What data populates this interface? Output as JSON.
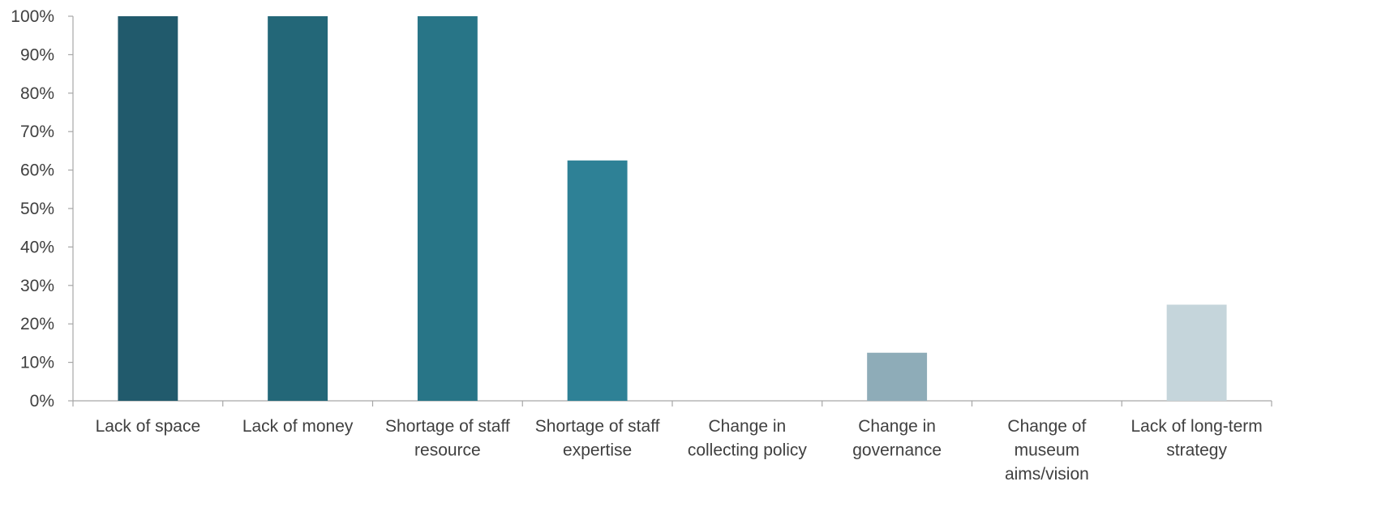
{
  "chart_data": {
    "type": "bar",
    "categories": [
      [
        "Lack of space"
      ],
      [
        "Lack of money"
      ],
      [
        "Shortage of staff",
        "resource"
      ],
      [
        "Shortage of staff",
        "expertise"
      ],
      [
        "Change in",
        "collecting policy"
      ],
      [
        "Change in",
        "governance"
      ],
      [
        "Change of",
        "museum",
        "aims/vision"
      ],
      [
        "Lack of long-term",
        "strategy"
      ]
    ],
    "values": [
      100,
      100,
      100,
      62.5,
      0,
      12.5,
      0,
      25
    ],
    "colors": [
      "#215a6c",
      "#236778",
      "#287587",
      "#2e8196",
      "#3f8fa3",
      "#8eacb8",
      "#a8c0c8",
      "#c5d5db"
    ],
    "ylim": [
      0,
      100
    ],
    "yticks": [
      "0%",
      "10%",
      "20%",
      "30%",
      "40%",
      "50%",
      "60%",
      "70%",
      "80%",
      "90%",
      "100%"
    ],
    "title": "",
    "xlabel": "",
    "ylabel": "",
    "grid": false,
    "legend": "none",
    "axis_color": "#a6a6a6"
  }
}
